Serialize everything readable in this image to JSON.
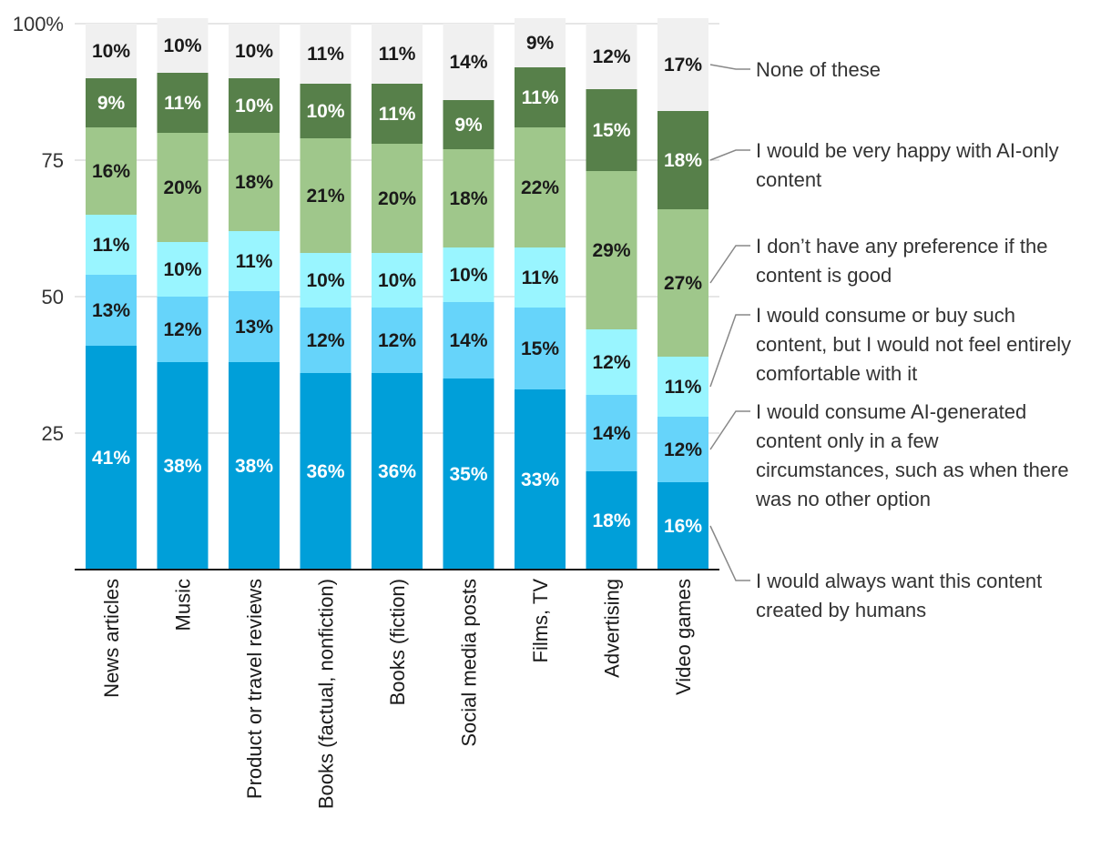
{
  "chart_data": {
    "type": "bar",
    "stacked": true,
    "title": "",
    "xlabel": "",
    "ylabel": "",
    "ylim": [
      0,
      100
    ],
    "y_ticks": [
      {
        "value": 100,
        "label": "100%"
      },
      {
        "value": 75,
        "label": "75"
      },
      {
        "value": 50,
        "label": "50"
      },
      {
        "value": 25,
        "label": "25"
      }
    ],
    "grid": true,
    "legend_position": "right",
    "categories": [
      "News articles",
      "Music",
      "Product or travel reviews",
      "Books (factual, nonfiction)",
      "Books (fiction)",
      "Social media posts",
      "Films, TV",
      "Advertising",
      "Video games"
    ],
    "series": [
      {
        "name": "I would always want this content created by humans",
        "color": "#009fd9",
        "label_color": "#ffffff",
        "values": [
          41,
          38,
          38,
          36,
          36,
          35,
          33,
          18,
          16
        ],
        "labels": [
          "41%",
          "38%",
          "38%",
          "36%",
          "36%",
          "35%",
          "33%",
          "18%",
          "16%"
        ]
      },
      {
        "name": "I would consume AI-generated content only in a few circumstances, such as when there was no other option",
        "color": "#66d4fa",
        "label_color": "#1a1a1a",
        "values": [
          13,
          12,
          13,
          12,
          12,
          14,
          15,
          14,
          12
        ],
        "labels": [
          "13%",
          "12%",
          "13%",
          "12%",
          "12%",
          "14%",
          "15%",
          "14%",
          "12%"
        ]
      },
      {
        "name": "I would consume or buy such content, but I would not feel entirely comfortable with it",
        "color": "#99f5ff",
        "label_color": "#1a1a1a",
        "values": [
          11,
          10,
          11,
          10,
          10,
          10,
          11,
          12,
          11
        ],
        "labels": [
          "11%",
          "10%",
          "11%",
          "10%",
          "10%",
          "10%",
          "11%",
          "12%",
          "11%"
        ]
      },
      {
        "name": "I don’t have any preference if the content is good",
        "color": "#9fc78b",
        "label_color": "#1a1a1a",
        "values": [
          16,
          20,
          18,
          21,
          20,
          18,
          22,
          29,
          27
        ],
        "labels": [
          "16%",
          "20%",
          "18%",
          "21%",
          "20%",
          "18%",
          "22%",
          "29%",
          "27%"
        ]
      },
      {
        "name": "I would be very happy with AI-only content",
        "color": "#57804a",
        "label_color": "#ffffff",
        "values": [
          9,
          11,
          10,
          10,
          11,
          9,
          11,
          15,
          18
        ],
        "labels": [
          "9%",
          "11%",
          "10%",
          "10%",
          "11%",
          "9%",
          "11%",
          "15%",
          "18%"
        ]
      },
      {
        "name": "None of these",
        "color": "#f0f0f0",
        "label_color": "#1a1a1a",
        "values": [
          10,
          10,
          10,
          11,
          11,
          14,
          9,
          12,
          17
        ],
        "labels": [
          "10%",
          "10%",
          "10%",
          "11%",
          "11%",
          "14%",
          "9%",
          "12%",
          "17%"
        ]
      }
    ],
    "legend": [
      {
        "series": 5,
        "lines": [
          "None of these"
        ]
      },
      {
        "series": 4,
        "lines": [
          "I would be very happy with AI-only",
          "content"
        ]
      },
      {
        "series": 3,
        "lines": [
          "I don’t have any preference if the",
          "content is good"
        ]
      },
      {
        "series": 2,
        "lines": [
          "I would consume or buy such",
          "content, but I would not feel entirely",
          "comfortable with it"
        ]
      },
      {
        "series": 1,
        "lines": [
          "I would consume AI-generated",
          "content only in a few",
          "circumstances, such as when there",
          "was no other option"
        ]
      },
      {
        "series": 0,
        "lines": [
          "I would always want this content",
          "created by humans"
        ]
      }
    ],
    "colors": {
      "axis": "#1a1a1a",
      "grid": "#cccccc",
      "connector": "#888888",
      "text": "#333333"
    }
  }
}
